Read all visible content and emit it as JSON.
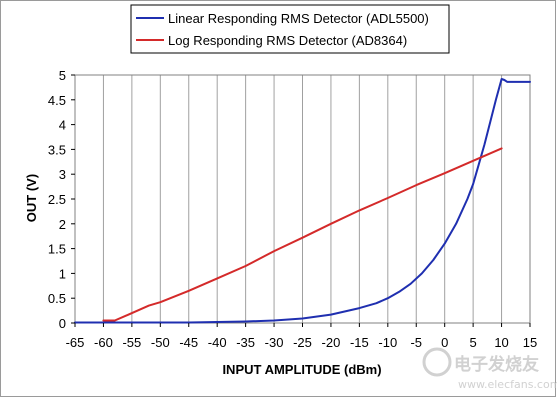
{
  "chart_data": {
    "type": "line",
    "title": "",
    "xlabel": "INPUT AMPLITUDE (dBm)",
    "ylabel": "OUT (V)",
    "xlim": [
      -65,
      15
    ],
    "ylim": [
      0,
      5
    ],
    "x_ticks": [
      -65,
      -60,
      -55,
      -50,
      -45,
      -40,
      -35,
      -30,
      -25,
      -20,
      -15,
      -10,
      -5,
      0,
      5,
      10,
      15
    ],
    "y_ticks": [
      0,
      0.5,
      1,
      1.5,
      2,
      2.5,
      3,
      3.5,
      4,
      4.5,
      5
    ],
    "y_tick_labels": [
      "0",
      "0.5",
      "1",
      "1.5",
      "2",
      "2.5",
      "3",
      "3.5",
      "4",
      "4.5",
      "5"
    ],
    "grid": "vertical",
    "legend_position": "top",
    "series": [
      {
        "name": "Linear Responding RMS Detector (ADL5500)",
        "color": "#1f2fb0",
        "x": [
          -65,
          -60,
          -55,
          -50,
          -45,
          -40,
          -35,
          -30,
          -25,
          -20,
          -15,
          -12,
          -10,
          -8,
          -6,
          -4,
          -2,
          0,
          2,
          4,
          5,
          6,
          7,
          8,
          9,
          10,
          10.5,
          11,
          12,
          13,
          14,
          15
        ],
        "y": [
          0.01,
          0.01,
          0.01,
          0.01,
          0.01,
          0.02,
          0.03,
          0.05,
          0.09,
          0.17,
          0.3,
          0.4,
          0.5,
          0.63,
          0.79,
          1.0,
          1.27,
          1.6,
          2.0,
          2.5,
          2.8,
          3.2,
          3.6,
          4.05,
          4.5,
          4.92,
          4.9,
          4.86,
          4.86,
          4.86,
          4.86,
          4.86
        ]
      },
      {
        "name": "Log Responding RMS Detector (AD8364)",
        "color": "#d42a2a",
        "x": [
          -60,
          -58,
          -56,
          -54,
          -52,
          -50,
          -45,
          -40,
          -35,
          -30,
          -25,
          -20,
          -15,
          -10,
          -5,
          0,
          5,
          10
        ],
        "y": [
          0.05,
          0.05,
          0.15,
          0.25,
          0.35,
          0.42,
          0.65,
          0.9,
          1.15,
          1.45,
          1.72,
          2.0,
          2.27,
          2.52,
          2.78,
          3.02,
          3.27,
          3.52
        ]
      }
    ]
  },
  "watermark": {
    "site_text": "电子发烧友",
    "url": "www.elecfans.com"
  }
}
